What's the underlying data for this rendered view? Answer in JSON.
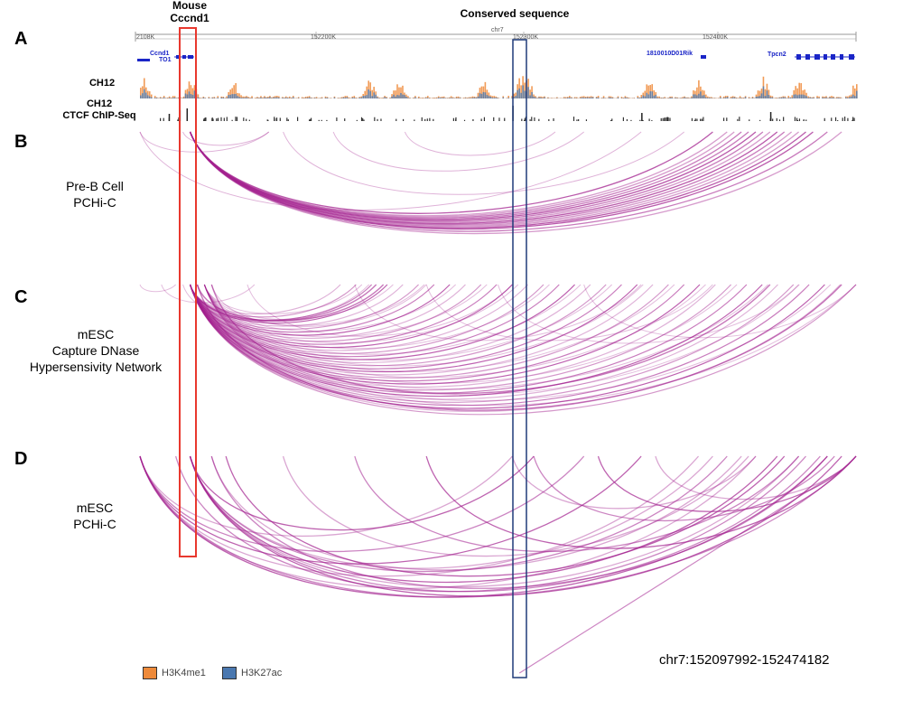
{
  "header": {
    "mouse_label": "Mouse\nCccnd1",
    "conserved_label": "Conserved sequence"
  },
  "panels": [
    {
      "letter": "A"
    },
    {
      "letter": "B",
      "title": "Pre-B Cell\nPCHi-C"
    },
    {
      "letter": "C",
      "title": "mESC\nCapture DNase\nHypersensivity Network"
    },
    {
      "letter": "D",
      "title": "mESC\nPCHi-C"
    }
  ],
  "tracks": {
    "ch12": "CH12",
    "ctcf": "CH12\nCTCF ChIP-Seq"
  },
  "ruler_labels": [
    "2108K",
    "152200K",
    "chr7",
    "152300K",
    "152400K"
  ],
  "genes": {
    "ccnd1": "Ccnd1",
    "to1": "TO1",
    "riken": "1810010D01Rik",
    "tpcn2": "Tpcn2"
  },
  "legend": [
    {
      "label": "H3K4me1",
      "color": "#ee8a3a"
    },
    {
      "label": "H3K27ac",
      "color": "#4a78b0"
    }
  ],
  "region": "chr7:152097992-152474182",
  "colors": {
    "arc": "#a3218f",
    "mouse_box": "#e8382e",
    "conserved_box": "#1f3a78",
    "gene": "#1a25c7"
  },
  "chart_data": {
    "type": "arc-diagram",
    "region": "chr7:152097992-152474182",
    "note": "arc endpoints are positions along the chr7 region, expressed as fraction of displayed window (0 = left edge, 1 = right edge)",
    "panels": {
      "B": {
        "anchor_arcs": [
          [
            0.07,
            0.88
          ],
          [
            0.07,
            0.9
          ],
          [
            0.07,
            0.86
          ],
          [
            0.07,
            0.92
          ],
          [
            0.07,
            0.84
          ],
          [
            0.07,
            0.94
          ],
          [
            0.07,
            0.82
          ],
          [
            0.07,
            0.87
          ],
          [
            0.07,
            0.89
          ],
          [
            0.07,
            0.91
          ],
          [
            0.07,
            0.85
          ],
          [
            0.07,
            0.93
          ],
          [
            0.07,
            0.83
          ],
          [
            0.07,
            0.96
          ],
          [
            0.07,
            0.8
          ],
          [
            0.07,
            0.98
          ]
        ],
        "other_arcs": [
          [
            0.0,
            0.18
          ],
          [
            0.0,
            0.7
          ],
          [
            0.06,
            0.18
          ],
          [
            0.2,
            0.76
          ],
          [
            0.27,
            0.62
          ],
          [
            0.37,
            0.58
          ]
        ]
      },
      "C": {
        "anchor_count": 34,
        "anchor_range": [
          0.28,
          1.0
        ],
        "anchor_arcs_fixed": [
          [
            0.07,
            0.33
          ],
          [
            0.08,
            0.34
          ],
          [
            0.08,
            0.98
          ],
          [
            0.1,
            0.88
          ]
        ],
        "other_arcs": [
          [
            0.0,
            0.05
          ],
          [
            0.03,
            0.16
          ],
          [
            0.06,
            0.32
          ],
          [
            0.1,
            0.4
          ],
          [
            0.15,
            0.52
          ],
          [
            0.3,
            0.7
          ],
          [
            0.4,
            0.8
          ],
          [
            0.5,
            0.92
          ],
          [
            0.62,
            1.0
          ]
        ]
      },
      "D": {
        "arcs": [
          [
            0.0,
            0.52
          ],
          [
            0.0,
            0.62
          ],
          [
            0.0,
            0.7
          ],
          [
            0.0,
            0.86
          ],
          [
            0.0,
            1.0
          ],
          [
            0.0,
            0.96
          ],
          [
            0.0,
            0.78
          ],
          [
            0.05,
            0.93
          ],
          [
            0.07,
            0.55
          ],
          [
            0.07,
            0.8
          ],
          [
            0.07,
            0.82
          ],
          [
            0.07,
            0.89
          ],
          [
            0.07,
            0.92
          ],
          [
            0.07,
            0.95
          ],
          [
            0.07,
            0.98
          ],
          [
            0.1,
            0.84
          ],
          [
            0.1,
            0.96
          ],
          [
            0.12,
            0.9
          ],
          [
            0.2,
            0.85
          ],
          [
            0.3,
            0.92
          ],
          [
            0.4,
            1.0
          ],
          [
            0.52,
            0.86
          ],
          [
            0.55,
            0.97
          ],
          [
            0.64,
            1.0
          ],
          [
            0.72,
            1.0
          ]
        ]
      }
    }
  }
}
